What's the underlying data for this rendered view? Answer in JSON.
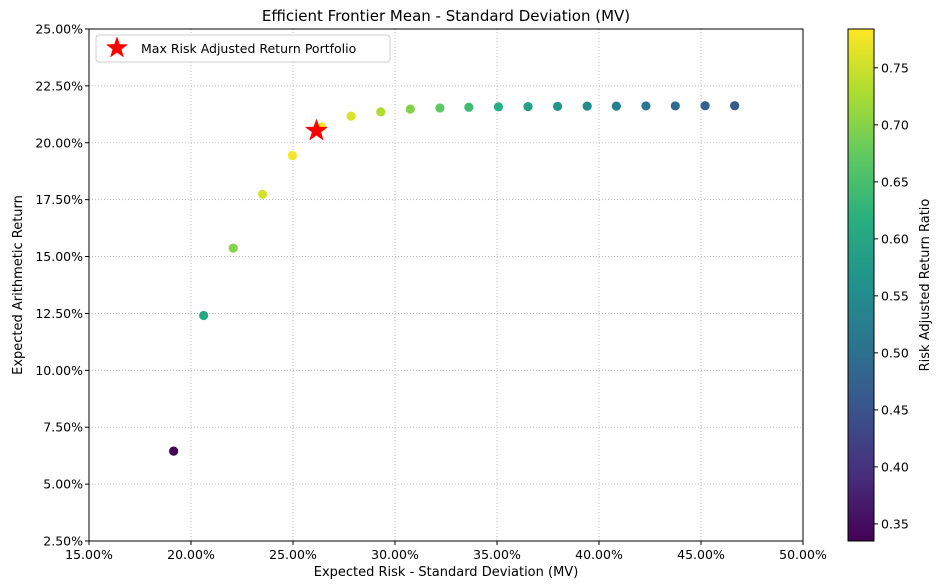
{
  "chart_data": {
    "type": "scatter",
    "title": "Efficient Frontier Mean - Standard Deviation (MV)",
    "xlabel": "Expected Risk - Standard Deviation (MV)",
    "ylabel": "Expected Arithmetic Return",
    "xlim": [
      0.15,
      0.5
    ],
    "ylim": [
      0.025,
      0.25
    ],
    "x_ticks": [
      "15.00%",
      "20.00%",
      "25.00%",
      "30.00%",
      "35.00%",
      "40.00%",
      "45.00%",
      "50.00%"
    ],
    "y_ticks": [
      "2.50%",
      "5.00%",
      "7.50%",
      "10.00%",
      "12.50%",
      "15.00%",
      "17.50%",
      "20.00%",
      "22.50%",
      "25.00%"
    ],
    "grid": true,
    "grid_style": "dotted",
    "series": [
      {
        "points": [
          {
            "x": 0.1915,
            "y": 0.0645,
            "ratio": 0.337
          },
          {
            "x": 0.2062,
            "y": 0.1241,
            "ratio": 0.602
          },
          {
            "x": 0.2207,
            "y": 0.1537,
            "ratio": 0.697
          },
          {
            "x": 0.2351,
            "y": 0.1774,
            "ratio": 0.755
          },
          {
            "x": 0.2497,
            "y": 0.1944,
            "ratio": 0.779
          },
          {
            "x": 0.264,
            "y": 0.207,
            "ratio": 0.784
          },
          {
            "x": 0.2785,
            "y": 0.2117,
            "ratio": 0.76
          },
          {
            "x": 0.293,
            "y": 0.2136,
            "ratio": 0.729
          },
          {
            "x": 0.3075,
            "y": 0.2148,
            "ratio": 0.699
          },
          {
            "x": 0.322,
            "y": 0.2153,
            "ratio": 0.669
          },
          {
            "x": 0.3362,
            "y": 0.2156,
            "ratio": 0.641
          },
          {
            "x": 0.3507,
            "y": 0.2158,
            "ratio": 0.615
          },
          {
            "x": 0.3652,
            "y": 0.2159,
            "ratio": 0.591
          },
          {
            "x": 0.3797,
            "y": 0.216,
            "ratio": 0.569
          },
          {
            "x": 0.3942,
            "y": 0.2161,
            "ratio": 0.548
          },
          {
            "x": 0.4085,
            "y": 0.2161,
            "ratio": 0.529
          },
          {
            "x": 0.423,
            "y": 0.2162,
            "ratio": 0.511
          },
          {
            "x": 0.4374,
            "y": 0.2162,
            "ratio": 0.494
          },
          {
            "x": 0.452,
            "y": 0.2163,
            "ratio": 0.478
          },
          {
            "x": 0.4665,
            "y": 0.2163,
            "ratio": 0.464
          }
        ]
      }
    ],
    "highlight": {
      "label": "Max Risk Adjusted Return Portfolio",
      "x": 0.2615,
      "y": 0.2053,
      "marker": "star",
      "color": "#ff0000"
    },
    "legend": {
      "position": "top-left",
      "entries": [
        "Max Risk Adjusted Return Portfolio"
      ]
    },
    "colorbar": {
      "label": "Risk Adjusted Return Ratio",
      "colormap": "viridis",
      "range": [
        0.335,
        0.784
      ],
      "ticks": [
        "0.35",
        "0.40",
        "0.45",
        "0.50",
        "0.55",
        "0.60",
        "0.65",
        "0.70",
        "0.75"
      ],
      "tick_values": [
        0.35,
        0.4,
        0.45,
        0.5,
        0.55,
        0.6,
        0.65,
        0.7,
        0.75
      ]
    }
  }
}
